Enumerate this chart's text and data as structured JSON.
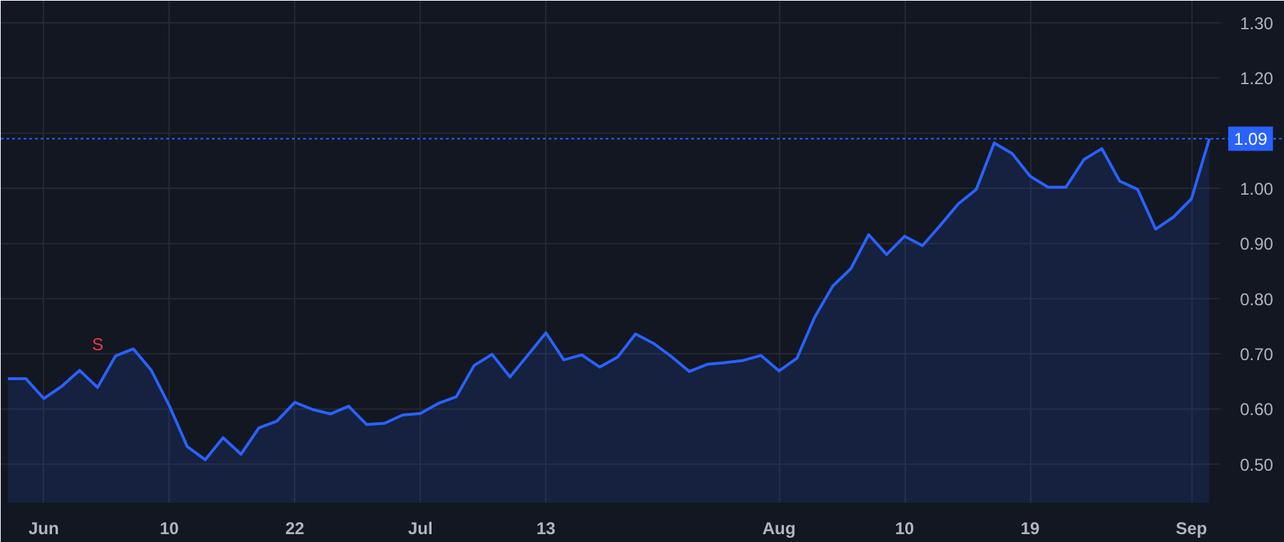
{
  "chart_data": {
    "type": "area",
    "categories": [
      null,
      null,
      "Jun",
      null,
      null,
      null,
      null,
      null,
      null,
      "10",
      null,
      null,
      null,
      null,
      null,
      null,
      "22",
      null,
      null,
      null,
      null,
      null,
      null,
      "Jul",
      null,
      null,
      null,
      null,
      null,
      null,
      "13",
      null,
      null,
      null,
      null,
      null,
      null,
      null,
      null,
      null,
      null,
      null,
      null,
      "Aug",
      null,
      null,
      null,
      null,
      null,
      null,
      "10",
      null,
      null,
      null,
      null,
      null,
      null,
      "19",
      null,
      null,
      null,
      null,
      null,
      null,
      null,
      null,
      "Sep",
      null
    ],
    "series": [
      {
        "color": "#2962ff",
        "values": [
          0.655,
          0.655,
          0.619,
          0.641,
          0.67,
          0.639,
          0.696,
          0.709,
          0.67,
          0.606,
          0.532,
          0.508,
          0.548,
          0.518,
          0.566,
          0.578,
          0.612,
          0.599,
          0.591,
          0.605,
          0.572,
          0.574,
          0.589,
          0.592,
          0.61,
          0.622,
          0.679,
          0.699,
          0.658,
          0.698,
          0.738,
          0.689,
          0.698,
          0.676,
          0.694,
          0.736,
          0.719,
          0.695,
          0.668,
          0.681,
          0.684,
          0.688,
          0.697,
          0.669,
          0.692,
          0.767,
          0.823,
          0.854,
          0.916,
          0.88,
          0.913,
          0.896,
          0.933,
          0.972,
          0.998,
          1.082,
          1.063,
          1.022,
          1.002,
          1.002,
          1.052,
          1.072,
          1.013,
          0.998,
          0.926,
          0.948,
          0.981,
          1.09
        ]
      }
    ],
    "ylim": [
      0.43,
      1.34
    ],
    "yticks": [
      {
        "value": 0.5,
        "label": "0.50"
      },
      {
        "value": 0.6,
        "label": "0.60"
      },
      {
        "value": 0.7,
        "label": "0.70"
      },
      {
        "value": 0.8,
        "label": "0.80"
      },
      {
        "value": 0.9,
        "label": "0.90"
      },
      {
        "value": 1.0,
        "label": "1.00"
      },
      {
        "value": 1.1,
        "label": null
      },
      {
        "value": 1.2,
        "label": "1.20"
      },
      {
        "value": 1.3,
        "label": "1.30"
      }
    ],
    "ref_lines": [
      {
        "axis": "y",
        "value": 1.09,
        "label": "1.09",
        "color": "#2962ff",
        "line_style": "dotted"
      }
    ],
    "annotations": [
      "S"
    ],
    "grid": true
  }
}
